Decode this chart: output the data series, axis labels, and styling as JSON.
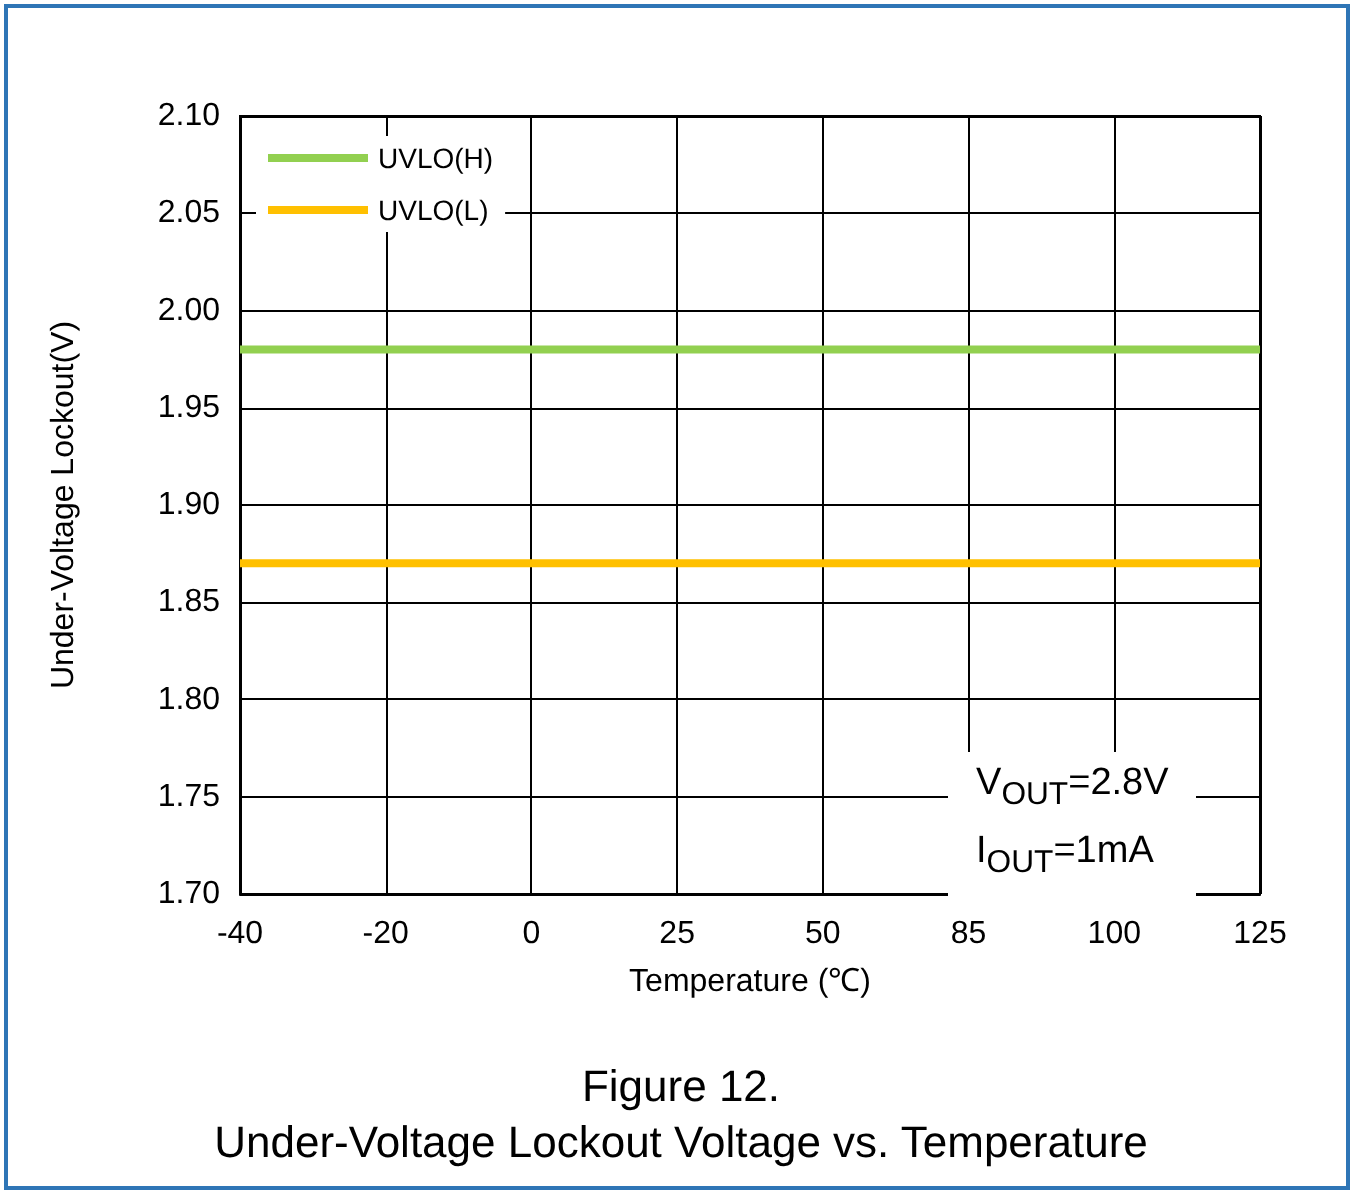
{
  "chart_data": {
    "type": "line",
    "title": "Figure 12.",
    "subtitle": "Under-Voltage Lockout Voltage vs. Temperature",
    "xlabel": "Temperature (℃)",
    "ylabel": "Under-Voltage Lockout(V)",
    "categories": [
      "-40",
      "-20",
      "0",
      "25",
      "50",
      "85",
      "100",
      "125"
    ],
    "series": [
      {
        "name": "UVLO(H)",
        "color": "#92d050",
        "values": [
          1.98,
          1.98,
          1.98,
          1.98,
          1.98,
          1.98,
          1.98,
          1.98
        ]
      },
      {
        "name": "UVLO(L)",
        "color": "#ffc000",
        "values": [
          1.87,
          1.87,
          1.87,
          1.87,
          1.87,
          1.87,
          1.87,
          1.87
        ]
      }
    ],
    "ylim": [
      1.7,
      2.1
    ],
    "yticks": [
      {
        "value": 1.7,
        "label": "1.70"
      },
      {
        "value": 1.75,
        "label": "1.75"
      },
      {
        "value": 1.8,
        "label": "1.80"
      },
      {
        "value": 1.85,
        "label": "1.85"
      },
      {
        "value": 1.9,
        "label": "1.90"
      },
      {
        "value": 1.95,
        "label": "1.95"
      },
      {
        "value": 2.0,
        "label": "2.00"
      },
      {
        "value": 2.05,
        "label": "2.05"
      },
      {
        "value": 2.1,
        "label": "2.10"
      }
    ],
    "annotations": [
      "V$_{OUT}$=2.8V",
      "I$_{OUT}$=1mA"
    ],
    "grid": true,
    "legend": "top left",
    "marker": "none",
    "line_style": "solid"
  }
}
